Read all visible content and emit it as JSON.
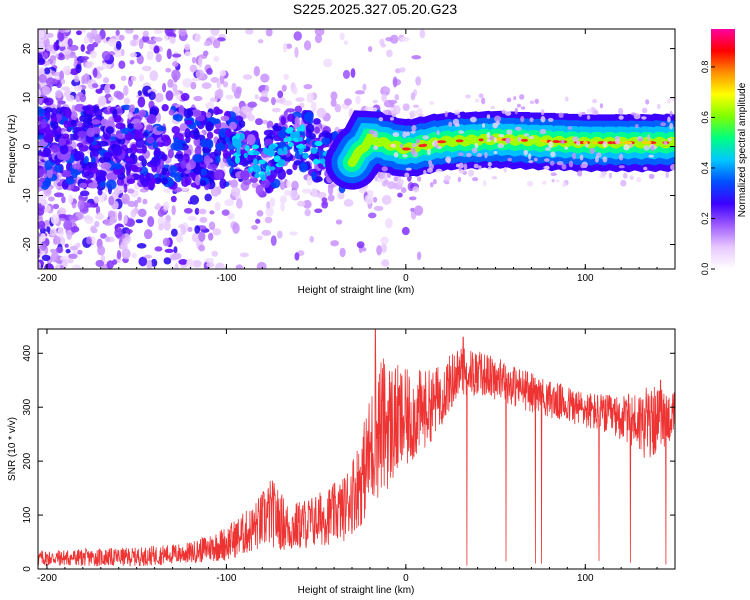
{
  "title": "S225.2025.327.05.20.G23",
  "chart_data": [
    {
      "type": "heatmap",
      "xlabel": "Height of straight line (km)",
      "ylabel": "Frequency (Hz)",
      "xlim": [
        -205,
        150
      ],
      "ylim": [
        -25,
        24
      ],
      "xticks": [
        -200,
        -100,
        0,
        100
      ],
      "yticks": [
        -20,
        -10,
        0,
        10,
        20
      ],
      "colorbar": {
        "label": "Normalized spectral amplitude",
        "range": [
          0.0,
          0.95
        ],
        "ticks": [
          0.0,
          0.2,
          0.4,
          0.6,
          0.8
        ],
        "colormap": [
          "#ffffff",
          "#e8c8ff",
          "#9f5cff",
          "#3b00ff",
          "#0050ff",
          "#00c8ff",
          "#00ff80",
          "#80ff00",
          "#ffff00",
          "#ff9000",
          "#ff0000",
          "#ff00a0"
        ]
      },
      "ridge": [
        {
          "x": -100,
          "freq": 1.5
        },
        {
          "x": -80,
          "freq": -4
        },
        {
          "x": -60,
          "freq": 2
        },
        {
          "x": -40,
          "freq": -3
        },
        {
          "x": -30,
          "freq": -3
        },
        {
          "x": -20,
          "freq": 1.5
        },
        {
          "x": 0,
          "freq": -0.5
        },
        {
          "x": 20,
          "freq": 1
        },
        {
          "x": 50,
          "freq": 1.5
        },
        {
          "x": 100,
          "freq": 0.8
        },
        {
          "x": 150,
          "freq": 0.8
        }
      ]
    },
    {
      "type": "line",
      "xlabel": "Height of straight line (km)",
      "ylabel": "SNR (10 * v/v)",
      "xlim": [
        -205,
        150
      ],
      "ylim": [
        0,
        445
      ],
      "xticks": [
        -200,
        -100,
        0,
        100
      ],
      "yticks": [
        0,
        100,
        200,
        300,
        400
      ],
      "color": "#ee3333",
      "envelope": [
        {
          "x": -205,
          "low": 5,
          "high": 35
        },
        {
          "x": -150,
          "low": 5,
          "high": 40
        },
        {
          "x": -120,
          "low": 10,
          "high": 50
        },
        {
          "x": -100,
          "low": 15,
          "high": 80
        },
        {
          "x": -85,
          "low": 30,
          "high": 120
        },
        {
          "x": -75,
          "low": 40,
          "high": 170
        },
        {
          "x": -65,
          "low": 30,
          "high": 120
        },
        {
          "x": -50,
          "low": 40,
          "high": 140
        },
        {
          "x": -35,
          "low": 50,
          "high": 170
        },
        {
          "x": -25,
          "low": 80,
          "high": 250
        },
        {
          "x": -15,
          "low": 130,
          "high": 400
        },
        {
          "x": 0,
          "low": 180,
          "high": 370
        },
        {
          "x": 15,
          "low": 240,
          "high": 370
        },
        {
          "x": 30,
          "low": 320,
          "high": 415
        },
        {
          "x": 45,
          "low": 320,
          "high": 400
        },
        {
          "x": 60,
          "low": 300,
          "high": 380
        },
        {
          "x": 80,
          "low": 280,
          "high": 350
        },
        {
          "x": 100,
          "low": 260,
          "high": 330
        },
        {
          "x": 120,
          "low": 240,
          "high": 320
        },
        {
          "x": 135,
          "low": 200,
          "high": 340
        },
        {
          "x": 150,
          "low": 240,
          "high": 330
        }
      ],
      "spikes": [
        {
          "x": -17,
          "value": 445
        },
        {
          "x": 32,
          "value": 430
        },
        {
          "x": 142,
          "value": 350
        }
      ],
      "dropouts_start_x": 22,
      "dropouts_end_x": 150,
      "dropout_floor": 5
    }
  ]
}
